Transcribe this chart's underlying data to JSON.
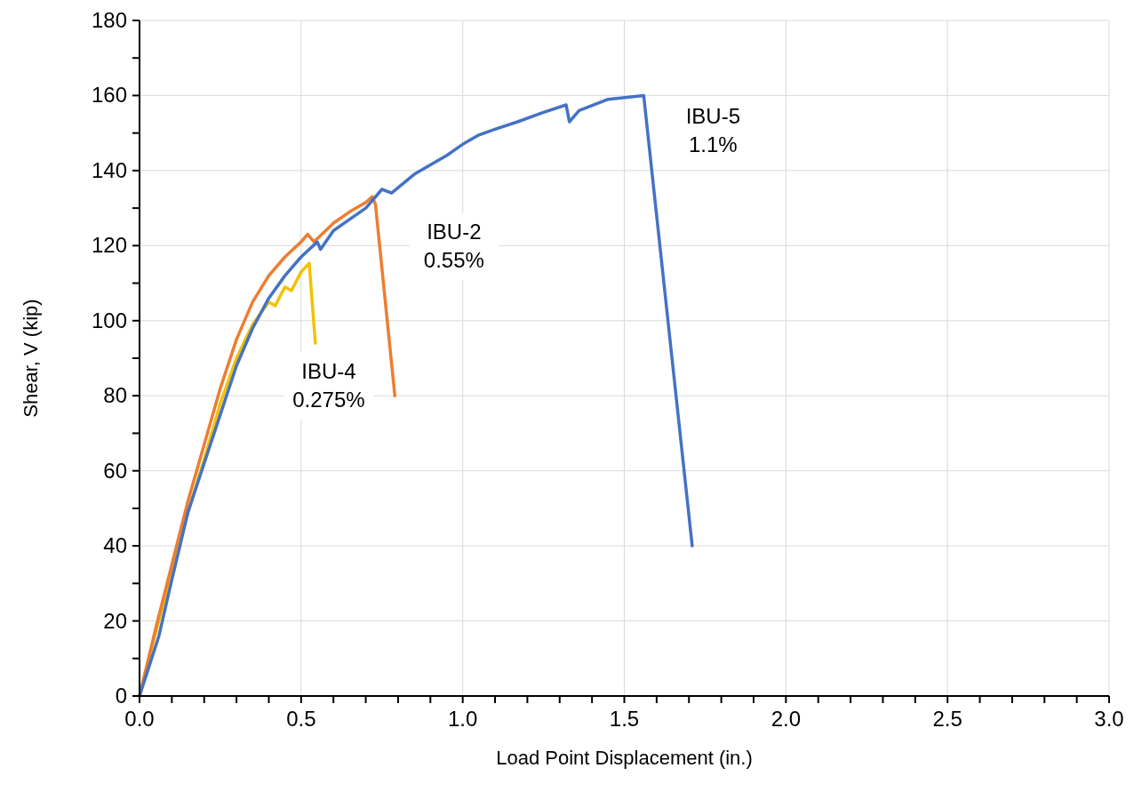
{
  "chart_data": {
    "type": "line",
    "xlabel": "Load Point Displacement (in.)",
    "ylabel": "Shear, V (kip)",
    "xlim": [
      0,
      3
    ],
    "ylim": [
      0,
      180
    ],
    "xticks": [
      {
        "value": 0,
        "label": "0.0"
      },
      {
        "value": 0.1,
        "label": null
      },
      {
        "value": 0.2,
        "label": null
      },
      {
        "value": 0.3,
        "label": null
      },
      {
        "value": 0.4,
        "label": null
      },
      {
        "value": 0.5,
        "label": "0.5"
      },
      {
        "value": 0.6,
        "label": null
      },
      {
        "value": 0.7,
        "label": null
      },
      {
        "value": 0.8,
        "label": null
      },
      {
        "value": 0.9,
        "label": null
      },
      {
        "value": 1,
        "label": "1.0"
      },
      {
        "value": 1.1,
        "label": null
      },
      {
        "value": 1.2,
        "label": null
      },
      {
        "value": 1.3,
        "label": null
      },
      {
        "value": 1.4,
        "label": null
      },
      {
        "value": 1.5,
        "label": "1.5"
      },
      {
        "value": 1.6,
        "label": null
      },
      {
        "value": 1.7,
        "label": null
      },
      {
        "value": 1.8,
        "label": null
      },
      {
        "value": 1.9,
        "label": null
      },
      {
        "value": 2,
        "label": "2.0"
      },
      {
        "value": 2.1,
        "label": null
      },
      {
        "value": 2.2,
        "label": null
      },
      {
        "value": 2.3,
        "label": null
      },
      {
        "value": 2.4,
        "label": null
      },
      {
        "value": 2.5,
        "label": "2.5"
      },
      {
        "value": 2.6,
        "label": null
      },
      {
        "value": 2.7,
        "label": null
      },
      {
        "value": 2.8,
        "label": null
      },
      {
        "value": 2.9,
        "label": null
      },
      {
        "value": 3,
        "label": "3.0"
      }
    ],
    "yticks": [
      0,
      {
        "value": 10,
        "label": null
      },
      20,
      {
        "value": 30,
        "label": null
      },
      40,
      {
        "value": 50,
        "label": null
      },
      60,
      {
        "value": 70,
        "label": null
      },
      80,
      {
        "value": 90,
        "label": null
      },
      100,
      {
        "value": 110,
        "label": null
      },
      120,
      {
        "value": 130,
        "label": null
      },
      140,
      {
        "value": 150,
        "label": null
      },
      160,
      {
        "value": 170,
        "label": null
      },
      180
    ],
    "grid": true,
    "marker": "none",
    "line_style": "solid",
    "series": [
      {
        "name": "IBU-5 1.1%",
        "color": "#4472c4",
        "x": [
          0,
          0.06,
          0.1,
          0.15,
          0.2,
          0.25,
          0.3,
          0.35,
          0.4,
          0.45,
          0.5,
          0.55,
          0.56,
          0.6,
          0.7,
          0.75,
          0.78,
          0.85,
          0.95,
          1.0,
          1.05,
          1.1,
          1.17,
          1.25,
          1.32,
          1.33,
          1.36,
          1.45,
          1.56,
          1.71
        ],
        "values": [
          0,
          16,
          31,
          49,
          62,
          75,
          88,
          98,
          106,
          112,
          117,
          121,
          119,
          124,
          130,
          135,
          134,
          139,
          144,
          147,
          149.5,
          151,
          153,
          155.5,
          157.5,
          153,
          156,
          159,
          160,
          40
        ]
      },
      {
        "name": "IBU-2 0.55%",
        "color": "#ed7d31",
        "x": [
          0,
          0.05,
          0.1,
          0.15,
          0.2,
          0.25,
          0.3,
          0.35,
          0.4,
          0.45,
          0.5,
          0.52,
          0.54,
          0.6,
          0.65,
          0.7,
          0.72,
          0.73,
          0.79
        ],
        "values": [
          0,
          18,
          35,
          52,
          67,
          82,
          95,
          105,
          112,
          117,
          121,
          123,
          121,
          126,
          129,
          131.5,
          133,
          131,
          80
        ]
      },
      {
        "name": "IBU-4 0.275%",
        "color": "#f2c200",
        "x": [
          0,
          0.05,
          0.1,
          0.15,
          0.2,
          0.25,
          0.3,
          0.35,
          0.4,
          0.42,
          0.45,
          0.47,
          0.5,
          0.525,
          0.544
        ],
        "values": [
          0,
          17,
          33,
          49,
          63,
          78,
          90,
          99,
          105,
          104,
          109,
          108,
          113,
          115.3,
          94
        ]
      }
    ]
  }
}
